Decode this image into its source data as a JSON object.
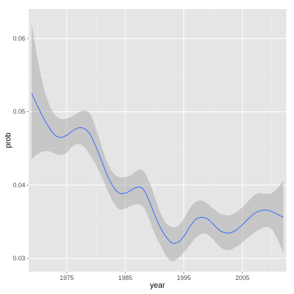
{
  "chart_data": {
    "type": "line",
    "title": "",
    "xlabel": "year",
    "ylabel": "prob",
    "xlim": [
      1968.5,
      2012.5
    ],
    "ylim": [
      0.0282,
      0.064
    ],
    "x_ticks": [
      1975,
      1985,
      1995,
      2005
    ],
    "x_tick_labels": [
      "1975",
      "1985",
      "1995",
      "2005"
    ],
    "y_ticks": [
      0.03,
      0.04,
      0.05,
      0.06
    ],
    "y_tick_labels": [
      "0.03",
      "0.04",
      "0.05",
      "0.06"
    ],
    "grid": true,
    "legend": "none",
    "colors": {
      "panel": "#e5e5e5",
      "grid_major": "#ffffff",
      "grid_minor": "#f2f2f2",
      "line": "#3366ff",
      "ribbon": "#999999",
      "tick": "#7f7f7f"
    },
    "series": [
      {
        "x": [
          1969,
          1970,
          1971,
          1972,
          1973,
          1974,
          1975,
          1976,
          1977,
          1978,
          1979,
          1980,
          1981,
          1982,
          1983,
          1984,
          1985,
          1986,
          1987,
          1988,
          1989,
          1990,
          1991,
          1992,
          1993,
          1994,
          1995,
          1996,
          1997,
          1998,
          1999,
          2000,
          2001,
          2002,
          2003,
          2004,
          2005,
          2006,
          2007,
          2008,
          2009,
          2010,
          2011,
          2012
        ],
        "y": [
          0.0525,
          0.0508,
          0.0492,
          0.0478,
          0.0468,
          0.0465,
          0.0468,
          0.0474,
          0.0478,
          0.0477,
          0.0469,
          0.0452,
          0.0432,
          0.0412,
          0.0397,
          0.0389,
          0.0389,
          0.0393,
          0.0397,
          0.0395,
          0.038,
          0.036,
          0.0342,
          0.0329,
          0.0321,
          0.0322,
          0.033,
          0.0343,
          0.0353,
          0.0356,
          0.0354,
          0.0347,
          0.0339,
          0.0335,
          0.0335,
          0.0339,
          0.0346,
          0.0354,
          0.0361,
          0.0365,
          0.0366,
          0.0364,
          0.036,
          0.0356
        ],
        "upper": [
          0.062,
          0.0573,
          0.0535,
          0.051,
          0.0496,
          0.049,
          0.0491,
          0.0494,
          0.0499,
          0.0502,
          0.0497,
          0.0477,
          0.0452,
          0.0429,
          0.0416,
          0.0411,
          0.0411,
          0.0414,
          0.042,
          0.042,
          0.0406,
          0.0385,
          0.0362,
          0.0348,
          0.0343,
          0.0344,
          0.0354,
          0.0368,
          0.0377,
          0.0379,
          0.0375,
          0.0368,
          0.0362,
          0.0359,
          0.0359,
          0.0363,
          0.037,
          0.0378,
          0.0386,
          0.0389,
          0.0388,
          0.0389,
          0.0396,
          0.0406
        ],
        "lower": [
          0.0435,
          0.0442,
          0.0446,
          0.0446,
          0.0443,
          0.0441,
          0.0444,
          0.0453,
          0.0456,
          0.0452,
          0.0441,
          0.0427,
          0.0411,
          0.0392,
          0.0376,
          0.0367,
          0.0368,
          0.0372,
          0.0374,
          0.0371,
          0.0355,
          0.0334,
          0.0318,
          0.0303,
          0.0296,
          0.03,
          0.0308,
          0.0318,
          0.0328,
          0.0333,
          0.0333,
          0.0326,
          0.0317,
          0.0312,
          0.0312,
          0.0316,
          0.0322,
          0.0329,
          0.0335,
          0.034,
          0.0343,
          0.034,
          0.0326,
          0.0308
        ]
      }
    ]
  }
}
